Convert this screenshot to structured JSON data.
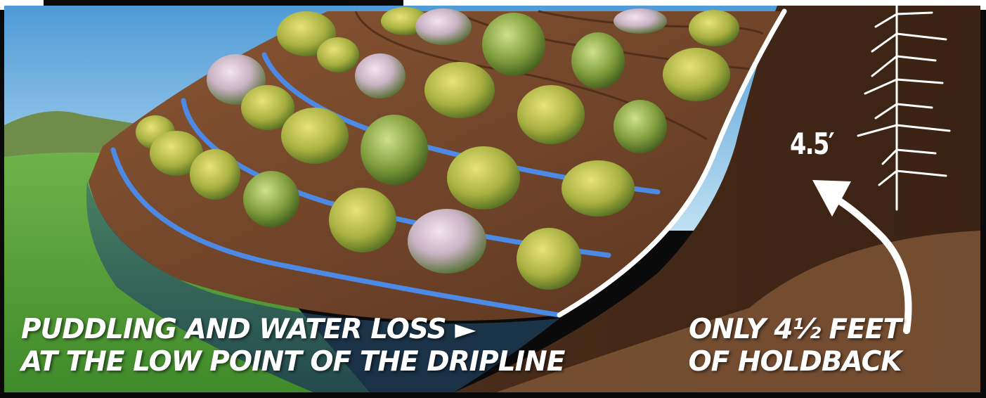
{
  "measurement_label": "4.5′",
  "caption_left": {
    "line1": "PUDDLING AND WATER LOSS",
    "line1_arrow": "►",
    "line2": "AT THE LOW POINT OF THE DRIPLINE"
  },
  "caption_right": {
    "line1": "ONLY 4½ FEET",
    "line2": "OF HOLDBACK"
  },
  "colors": {
    "sky": "#5fa8dc",
    "grass": "#5aa23a",
    "soil": "#6b3f25",
    "drip_line": "#4a8ef0",
    "edge_line": "#ffffff"
  }
}
